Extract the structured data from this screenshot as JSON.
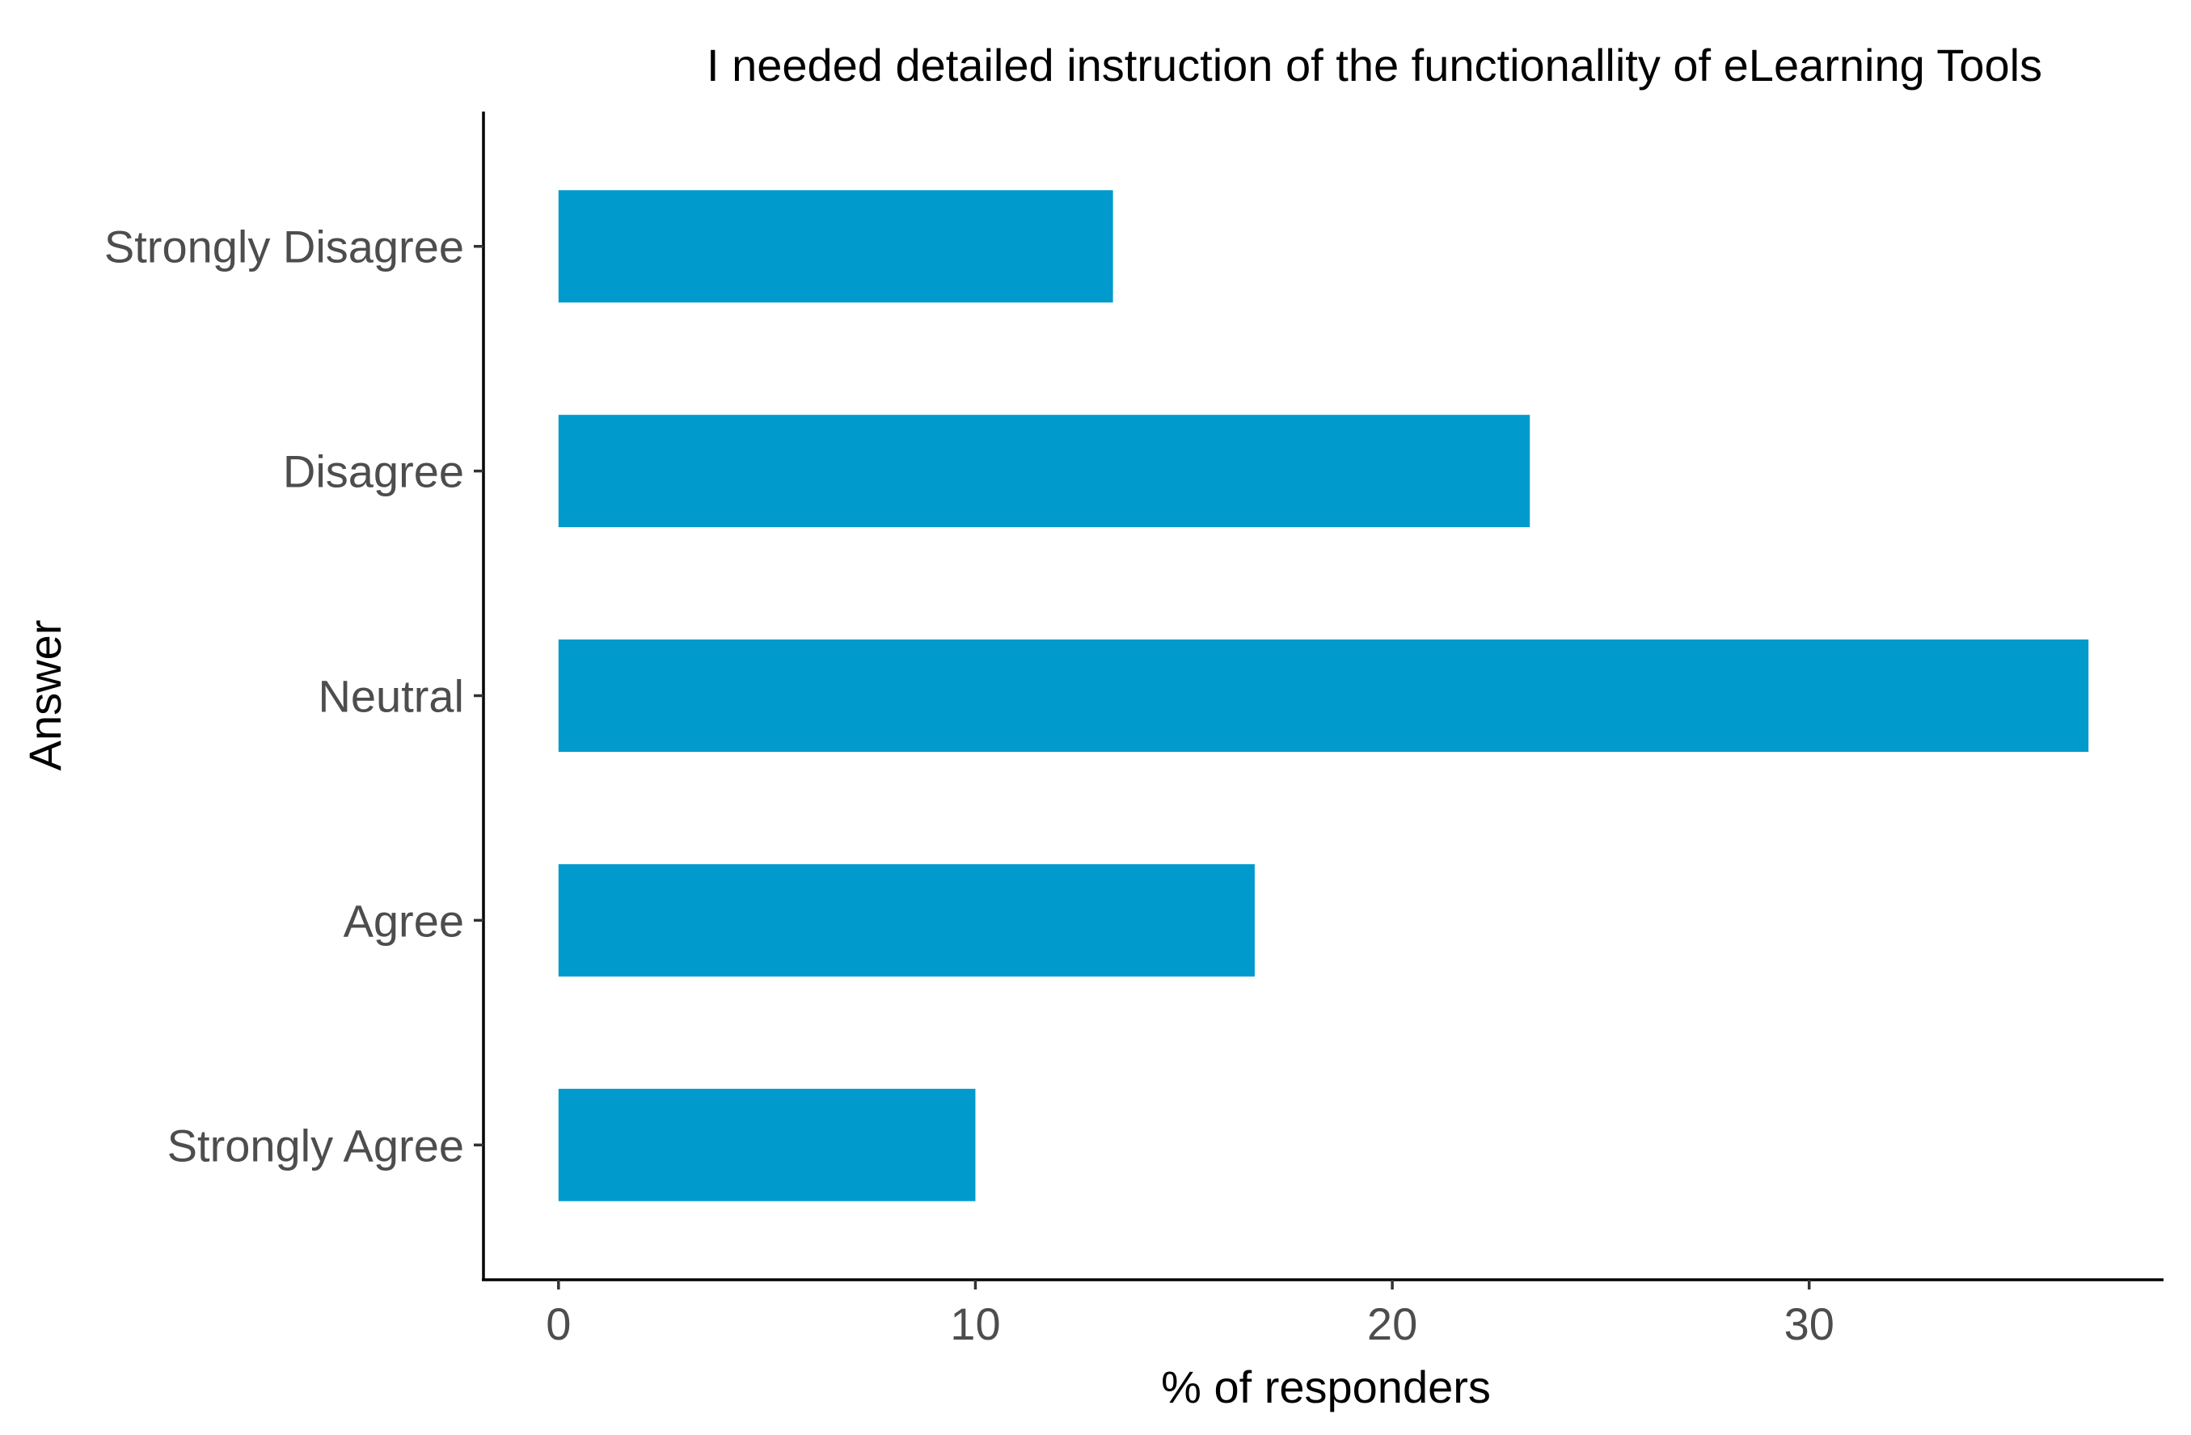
{
  "chart_data": {
    "type": "bar",
    "orientation": "horizontal",
    "title": "I needed detailed instruction of the functionallity of eLearning Tools",
    "xlabel": "% of responders",
    "ylabel": "Answer",
    "categories": [
      "Strongly Disagree",
      "Disagree",
      "Neutral",
      "Agree",
      "Strongly Agree"
    ],
    "values": [
      13.3,
      23.3,
      36.7,
      16.7,
      10.0
    ],
    "xlim": [
      -1.8,
      38.5
    ],
    "xticks": [
      0,
      10,
      20,
      30
    ],
    "xtick_labels": [
      "0",
      "10",
      "20",
      "30"
    ],
    "bar_color": "#009ACD",
    "grid": false,
    "legend": "none"
  }
}
